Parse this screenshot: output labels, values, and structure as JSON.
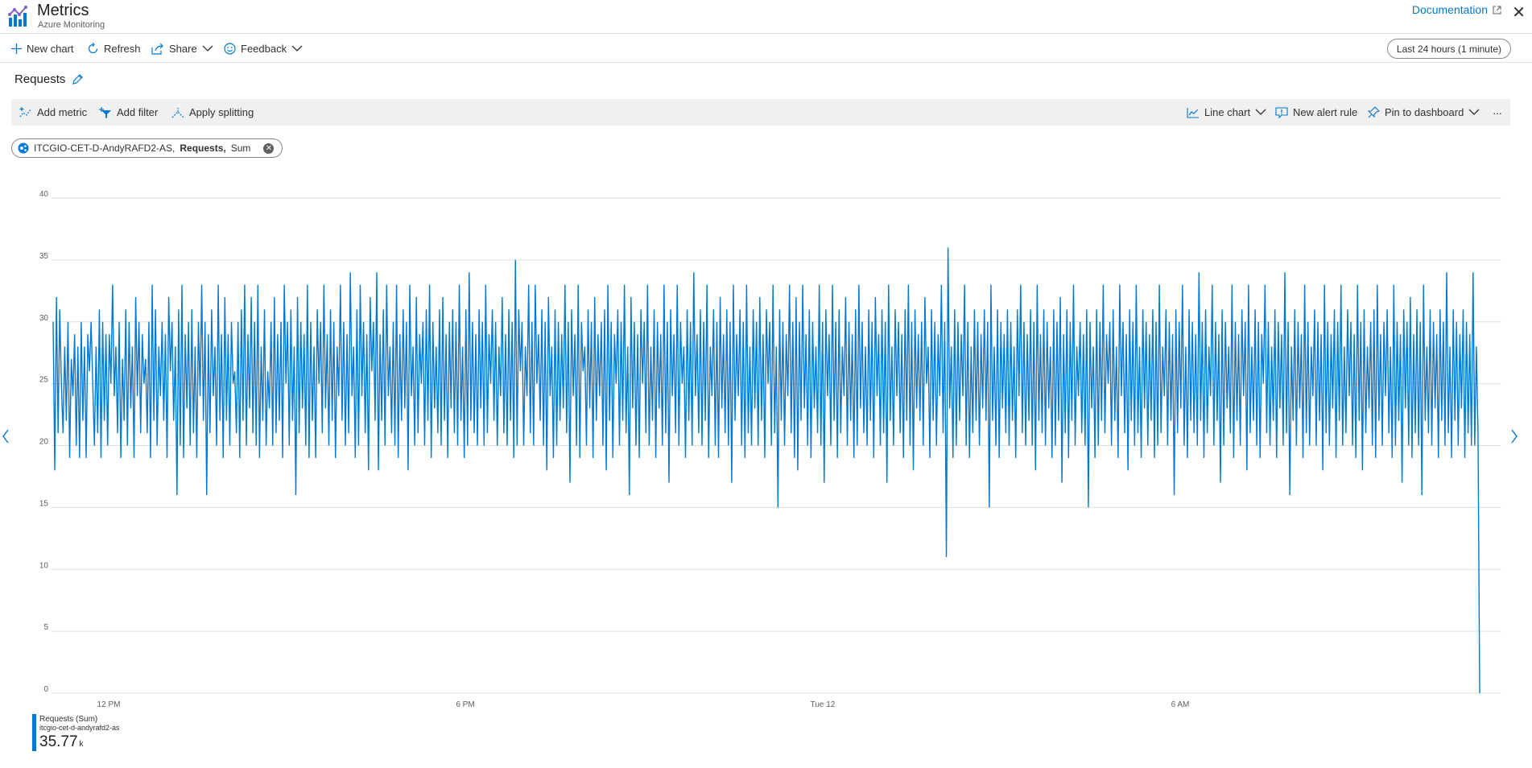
{
  "app": {
    "title": "Metrics",
    "subtitle": "Azure Monitoring",
    "documentation_label": "Documentation"
  },
  "toolbar": {
    "new_chart": "New chart",
    "refresh": "Refresh",
    "share": "Share",
    "feedback": "Feedback",
    "time_range": "Last 24 hours (1 minute)"
  },
  "chart_panel": {
    "title": "Requests",
    "add_metric": "Add metric",
    "add_filter": "Add filter",
    "apply_splitting": "Apply splitting",
    "chart_type": "Line chart",
    "new_alert_rule": "New alert rule",
    "pin_to_dashboard": "Pin to dashboard",
    "more": "···"
  },
  "metric_pill": {
    "resource": "ITCGIO-CET-D-AndyRAFD2-AS,",
    "metric": "Requests,",
    "aggregation": "Sum"
  },
  "legend": {
    "name": "Requests (Sum)",
    "resource": "itcgio-cet-d-andyrafd2-as",
    "value": "35.77",
    "unit": "k"
  },
  "colors": {
    "accent": "#0078d4",
    "series": "#0078d4",
    "gridline": "#e1dfdd"
  },
  "icons": {
    "app": "metrics-chart-icon",
    "new_chart": "plus-icon",
    "refresh": "refresh-icon",
    "share": "share-icon",
    "feedback": "smiley-icon",
    "external": "external-link-icon",
    "close": "close-icon",
    "edit": "pencil-icon",
    "nav_left": "chevron-left-icon",
    "nav_right": "chevron-right-icon"
  },
  "chart_data": {
    "type": "line",
    "title": "",
    "xlabel": "",
    "ylabel": "",
    "ylim": [
      0,
      40
    ],
    "yticks": [
      0,
      5,
      10,
      15,
      20,
      25,
      30,
      35,
      40
    ],
    "xticks": [
      "12 PM",
      "6 PM",
      "Tue 12",
      "6 AM"
    ],
    "grid": true,
    "series": [
      {
        "name": "Requests (Sum)",
        "values": [
          30,
          18,
          32,
          21,
          31,
          25,
          21,
          28,
          22,
          30,
          19,
          27,
          24,
          29,
          20,
          28,
          19,
          30,
          22,
          28,
          19,
          29,
          26,
          30,
          25,
          20,
          28,
          21,
          31,
          19,
          30,
          22,
          29,
          20,
          29,
          25,
          33,
          24,
          28,
          21,
          30,
          19,
          27,
          22,
          31,
          20,
          30,
          23,
          28,
          19,
          32,
          24,
          30,
          21,
          29,
          25,
          27,
          21,
          30,
          19,
          33,
          22,
          31,
          20,
          28,
          24,
          30,
          22,
          29,
          19,
          32,
          26,
          30,
          22,
          28,
          16,
          31,
          20,
          33,
          19,
          29,
          23,
          30,
          20,
          31,
          21,
          28,
          19,
          30,
          24,
          33,
          22,
          30,
          16,
          29,
          21,
          31,
          24,
          28,
          20,
          33,
          22,
          29,
          19,
          32,
          22,
          29,
          20,
          30,
          25,
          26,
          21,
          30,
          19,
          31,
          22,
          33,
          20,
          29,
          23,
          32,
          21,
          30,
          20,
          33,
          19,
          28,
          22,
          31,
          20,
          26,
          23,
          30,
          20,
          32,
          21,
          29,
          22,
          30,
          19,
          33,
          25,
          30,
          20,
          31,
          22,
          28,
          16,
          32,
          21,
          30,
          23,
          29,
          20,
          33,
          19,
          30,
          22,
          28,
          19,
          31,
          25,
          30,
          21,
          33,
          23,
          29,
          20,
          31,
          22,
          30,
          19,
          28,
          24,
          33,
          22,
          30,
          20,
          29,
          21,
          34,
          24,
          28,
          19,
          31,
          20,
          33,
          24,
          30,
          21,
          29,
          18,
          32,
          26,
          30,
          22,
          34,
          18,
          29,
          22,
          31,
          20,
          33,
          24,
          28,
          21,
          30,
          20,
          33,
          19,
          29,
          22,
          31,
          23,
          30,
          18,
          33,
          24,
          28,
          20,
          32,
          21,
          29,
          25,
          30,
          20,
          31,
          22,
          33,
          19,
          30,
          23,
          28,
          21,
          31,
          20,
          32,
          22,
          29,
          19,
          30,
          23,
          31,
          21,
          30,
          20,
          33,
          22,
          28,
          19,
          31,
          20,
          34,
          22,
          30,
          21,
          29,
          20,
          31,
          23,
          30,
          20,
          33,
          21,
          29,
          25,
          31,
          22,
          30,
          20,
          28,
          24,
          32,
          21,
          29,
          20,
          31,
          22,
          30,
          19,
          35,
          20,
          31,
          26,
          30,
          20,
          28,
          24,
          33,
          21,
          30,
          20,
          33,
          25,
          29,
          22,
          31,
          20,
          30,
          18,
          32,
          24,
          28,
          19,
          31,
          20,
          30,
          22,
          29,
          23,
          33,
          21,
          30,
          17,
          31,
          24,
          29,
          20,
          33,
          19,
          30,
          26,
          28,
          20,
          31,
          23,
          30,
          19,
          32,
          22,
          29,
          24,
          30,
          20,
          31,
          18,
          33,
          22,
          30,
          19,
          29,
          25,
          31,
          20,
          30,
          22,
          33,
          21,
          28,
          16,
          32,
          23,
          30,
          20,
          29,
          19,
          31,
          25,
          30,
          21,
          33,
          20,
          28,
          22,
          31,
          19,
          30,
          23,
          29,
          20,
          33,
          21,
          30,
          17,
          31,
          24,
          29,
          21,
          33,
          20,
          30,
          25,
          28,
          19,
          31,
          22,
          30,
          20,
          34,
          24,
          29,
          21,
          31,
          20,
          30,
          22,
          33,
          19,
          28,
          24,
          31,
          20,
          30,
          19,
          32,
          23,
          29,
          21,
          31,
          20,
          30,
          17,
          33,
          22,
          29,
          24,
          31,
          20,
          30,
          19,
          33,
          21,
          28,
          20,
          31,
          23,
          30,
          20,
          32,
          22,
          29,
          19,
          31,
          25,
          30,
          20,
          33,
          21,
          28,
          15,
          31,
          22,
          30,
          20,
          29,
          24,
          33,
          21,
          30,
          19,
          32,
          18,
          30,
          22,
          33,
          23,
          29,
          20,
          31,
          19,
          30,
          23,
          28,
          21,
          33,
          20,
          30,
          17,
          31,
          24,
          29,
          20,
          33,
          22,
          30,
          19,
          31,
          21,
          28,
          24,
          32,
          20,
          30,
          22,
          29,
          19,
          31,
          20,
          33,
          23,
          30,
          21,
          28,
          20,
          31,
          22,
          30,
          19,
          32,
          24,
          29,
          20,
          31,
          21,
          30,
          17,
          33,
          22,
          28,
          20,
          31,
          24,
          30,
          21,
          29,
          19,
          31,
          22,
          33,
          20,
          30,
          18,
          31,
          23,
          29,
          22,
          30,
          20,
          32,
          25,
          28,
          19,
          31,
          22,
          30,
          20,
          29,
          24,
          33,
          21,
          30,
          11,
          36,
          23,
          28,
          19,
          31,
          20,
          30,
          22,
          29,
          24,
          33,
          20,
          30,
          19,
          28,
          21,
          31,
          22,
          30,
          20,
          29,
          23,
          31,
          22,
          30,
          15,
          33,
          22,
          28,
          20,
          31,
          19,
          30,
          23,
          29,
          21,
          31,
          20,
          30,
          22,
          28,
          19,
          31,
          24,
          33,
          21,
          30,
          20,
          29,
          22,
          31,
          20,
          30,
          18,
          33,
          22,
          29,
          21,
          31,
          20,
          30,
          23,
          28,
          19,
          31,
          20,
          30,
          22,
          32,
          17,
          29,
          21,
          31,
          19,
          30,
          22,
          33,
          20,
          28,
          24,
          30,
          21,
          29,
          20,
          31,
          15,
          30,
          23,
          28,
          19,
          31,
          20,
          30,
          22,
          33,
          21,
          29,
          25,
          30,
          20,
          31,
          22,
          28,
          19,
          33,
          24,
          30,
          21,
          29,
          18,
          31,
          22,
          30,
          20,
          33,
          21,
          28,
          19,
          31,
          23,
          30,
          20,
          29,
          22,
          31,
          19,
          30,
          20,
          33,
          21,
          28,
          24,
          31,
          20,
          30,
          22,
          29,
          16,
          31,
          21,
          30,
          23,
          33,
          20,
          28,
          19,
          31,
          22,
          30,
          21,
          29,
          20,
          34,
          22,
          30,
          19,
          31,
          21,
          28,
          24,
          33,
          20,
          30,
          22,
          29,
          17,
          31,
          20,
          30,
          23,
          28,
          21,
          33,
          19,
          30,
          22,
          29,
          20,
          31,
          24,
          30,
          18,
          33,
          21,
          28,
          22,
          31,
          20,
          30,
          19,
          29,
          25,
          33,
          21,
          30,
          20,
          28,
          22,
          31,
          19,
          30,
          23,
          29,
          20,
          34,
          21,
          30,
          16,
          28,
          22,
          31,
          20,
          30,
          23,
          29,
          19,
          33,
          21,
          30,
          20,
          28,
          24,
          31,
          20,
          30,
          22,
          29,
          18,
          33,
          21,
          30,
          20,
          29,
          23,
          31,
          19,
          30,
          22,
          33,
          20,
          28,
          21,
          31,
          24,
          30,
          20,
          29,
          19,
          33,
          22,
          30,
          18,
          31,
          21,
          28,
          23,
          30,
          20,
          31,
          19,
          33,
          22,
          29,
          20,
          30,
          24,
          31,
          21,
          28,
          19,
          33,
          20,
          30,
          22,
          29,
          17,
          31,
          23,
          30,
          20,
          32,
          19,
          29,
          21,
          31,
          20,
          30,
          16,
          33,
          22,
          28,
          21,
          31,
          20,
          30,
          23,
          29,
          19,
          31,
          22,
          30,
          20,
          34,
          21,
          28,
          19,
          31,
          22,
          30,
          20,
          29,
          23,
          31,
          19,
          30,
          21,
          29,
          20,
          34,
          20,
          28,
          21,
          0
        ]
      }
    ]
  }
}
